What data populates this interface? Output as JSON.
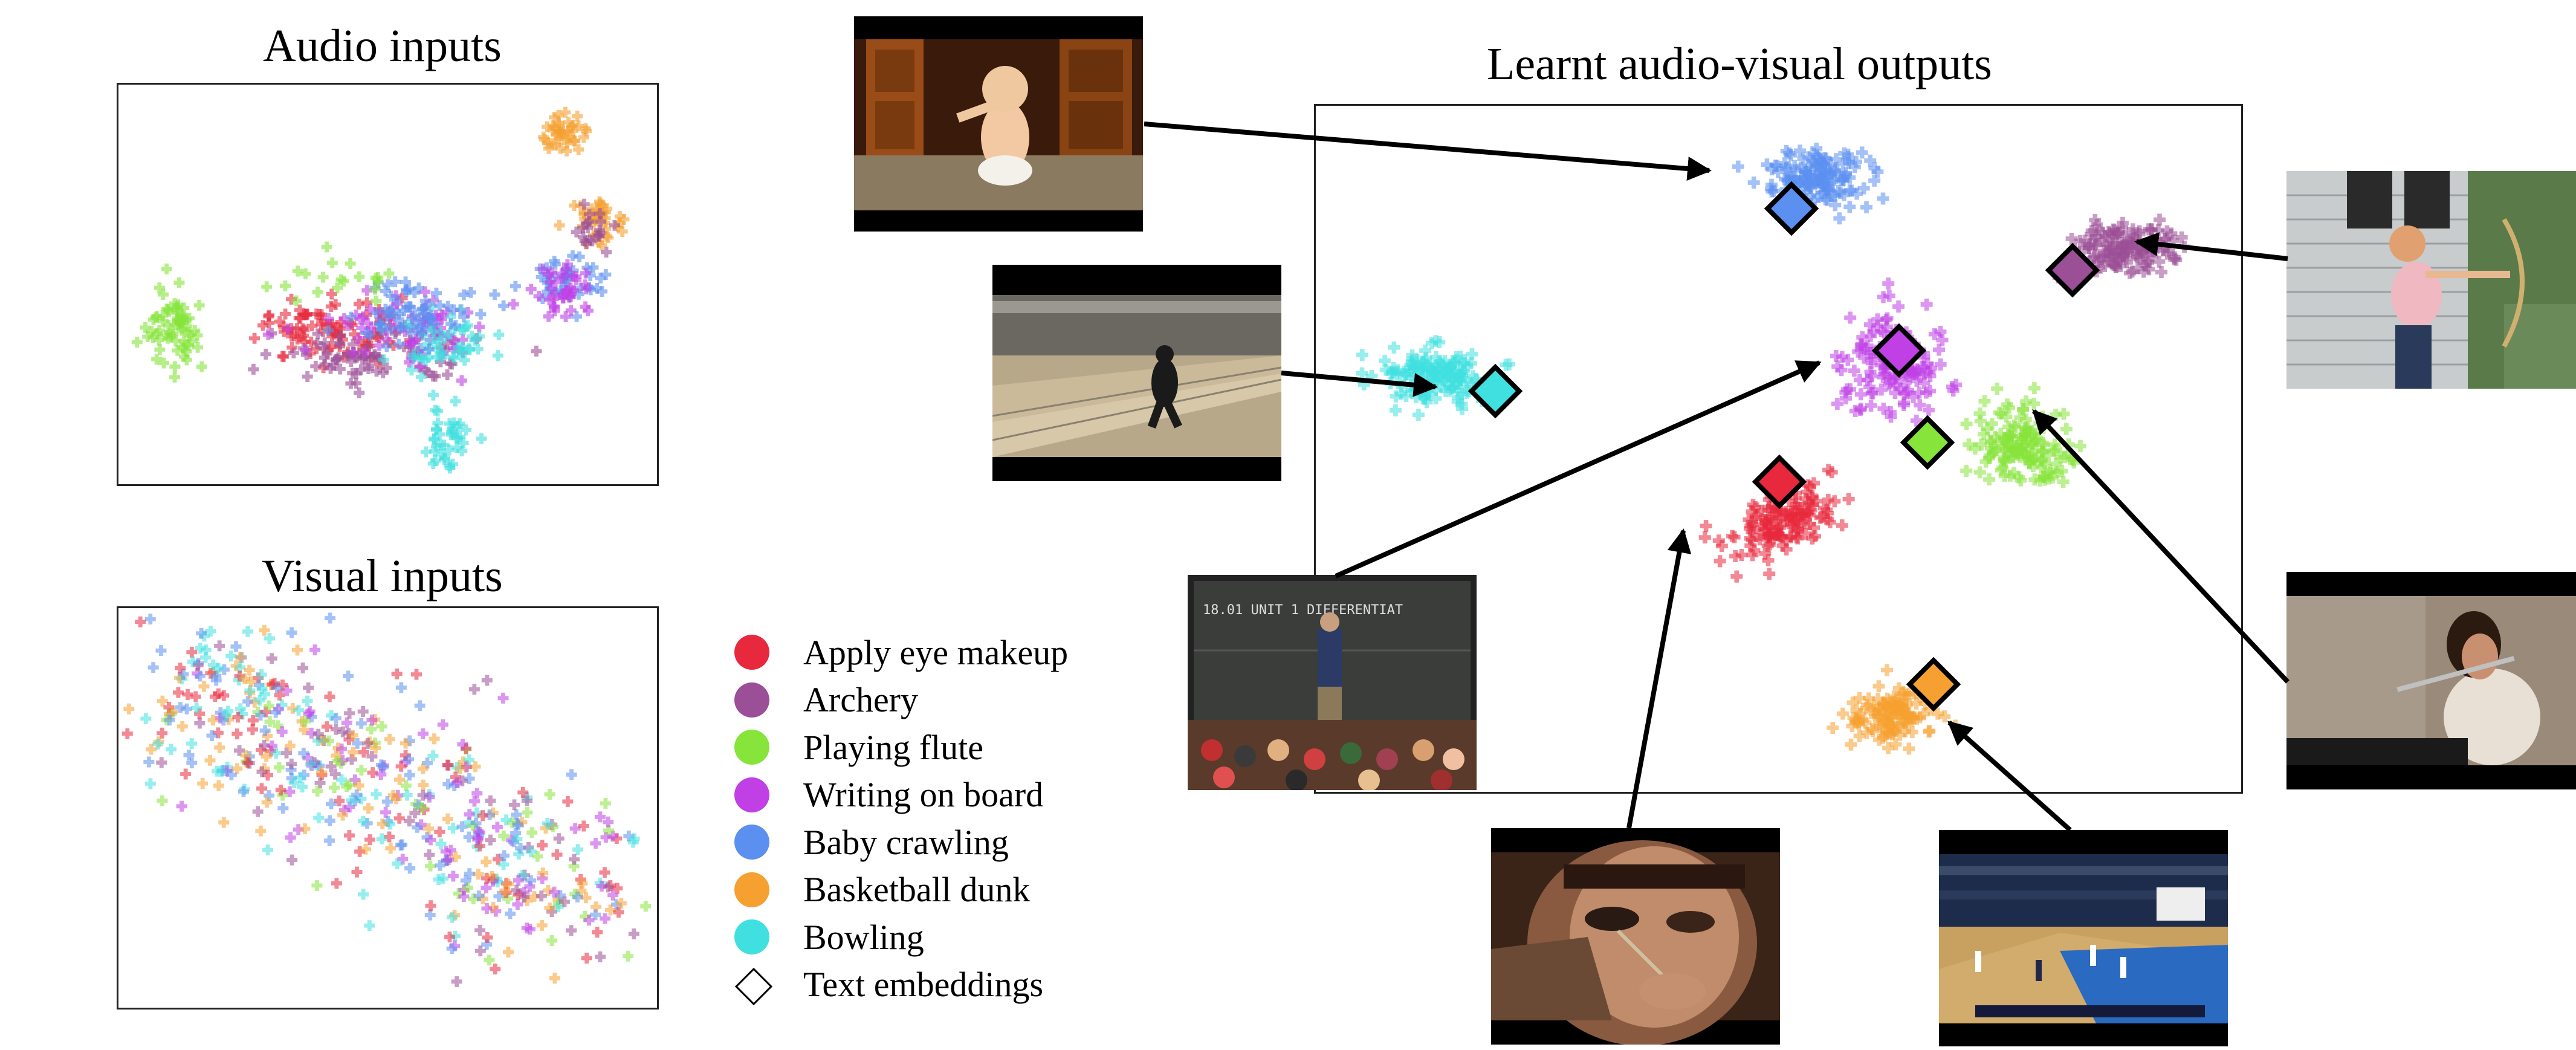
{
  "titles": {
    "audio": "Audio inputs",
    "visual": "Visual inputs",
    "learnt": "Learnt audio-visual outputs"
  },
  "legend": {
    "items": [
      {
        "label": "Apply eye makeup",
        "color": "#e8283c"
      },
      {
        "label": "Archery",
        "color": "#9b4f96"
      },
      {
        "label": "Playing flute",
        "color": "#86e43a"
      },
      {
        "label": "Writing on board",
        "color": "#c040e6"
      },
      {
        "label": "Baby crawling",
        "color": "#5b8ff0"
      },
      {
        "label": "Basketball dunk",
        "color": "#f5a030"
      },
      {
        "label": "Bowling",
        "color": "#40e0e0"
      }
    ],
    "text_embeddings_label": "Text embeddings"
  },
  "thumbnails": [
    {
      "name": "baby-crawling-thumbnail",
      "class": "Baby crawling"
    },
    {
      "name": "bowling-thumbnail",
      "class": "Bowling"
    },
    {
      "name": "writing-on-board-thumbnail",
      "class": "Writing on board"
    },
    {
      "name": "apply-eye-makeup-thumbnail",
      "class": "Apply eye makeup"
    },
    {
      "name": "basketball-dunk-thumbnail",
      "class": "Basketball dunk"
    },
    {
      "name": "archery-thumbnail",
      "class": "Archery"
    },
    {
      "name": "playing-flute-thumbnail",
      "class": "Playing flute"
    }
  ],
  "thumbnail_text": {
    "board_writing": "18.01 UNIT 1 DIFFERENTIAT"
  }
}
